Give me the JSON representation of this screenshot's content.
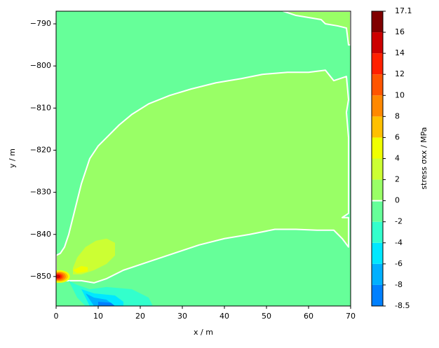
{
  "chart_data": {
    "type": "contour",
    "xlabel": "x / m",
    "ylabel": "y / m",
    "colorbar_label": "stress σxx / MPa",
    "xlim": [
      0,
      70
    ],
    "ylim": [
      -857,
      -787
    ],
    "xticks": [
      0,
      10,
      20,
      30,
      40,
      50,
      60,
      70
    ],
    "yticks": [
      {
        "value": -790,
        "label": "−790"
      },
      {
        "value": -800,
        "label": "−800"
      },
      {
        "value": -810,
        "label": "−810"
      },
      {
        "value": -820,
        "label": "−820"
      },
      {
        "value": -830,
        "label": "−830"
      },
      {
        "value": -840,
        "label": "−840"
      },
      {
        "value": -850,
        "label": "−850"
      }
    ],
    "levels": [
      -8.5,
      -8,
      -6,
      -4,
      -2,
      0,
      2,
      4,
      6,
      8,
      10,
      12,
      14,
      16,
      17.1
    ],
    "colors": [
      "#0080ff",
      "#00b0ff",
      "#00e8ff",
      "#33ffcc",
      "#66ff99",
      "#99ff66",
      "#ccff33",
      "#f0ff00",
      "#ffc000",
      "#ff8800",
      "#ff5500",
      "#ff2000",
      "#cc0000",
      "#800000"
    ],
    "contour_line_level": 0,
    "regions": [
      {
        "level": -2,
        "x": [
          0,
          70,
          70,
          0
        ],
        "y": [
          -787,
          -787,
          -857,
          -857
        ]
      },
      {
        "level": 0,
        "x": [
          54,
          57,
          60,
          63,
          64,
          67,
          69,
          69.5,
          70,
          70
        ],
        "y": [
          -787,
          -788,
          -788.5,
          -789,
          -790,
          -790.5,
          -791,
          -795,
          -795,
          -787
        ]
      },
      {
        "level": 0,
        "x": [
          0,
          1,
          2,
          3,
          4,
          5,
          6,
          7,
          8,
          10,
          12,
          15,
          18,
          22,
          27,
          32,
          38,
          44,
          49,
          55,
          60,
          64,
          66,
          69,
          69.5,
          69,
          69.5,
          69.5,
          68,
          69.5,
          69.5,
          68,
          66,
          62,
          57,
          52,
          46,
          40,
          34,
          28,
          22,
          16,
          12,
          9,
          6,
          3,
          0
        ],
        "y": [
          -845,
          -844.5,
          -843,
          -840,
          -836,
          -832,
          -828,
          -825,
          -822,
          -819,
          -817,
          -814,
          -811.5,
          -809,
          -807,
          -805.5,
          -804,
          -803,
          -802,
          -801.5,
          -801.5,
          -801,
          -803.5,
          -802.5,
          -808,
          -811,
          -817,
          -835,
          -836,
          -836,
          -843,
          -841,
          -839,
          -839,
          -838.8,
          -838.8,
          -840,
          -841,
          -842.5,
          -844.5,
          -846.5,
          -848.5,
          -850.5,
          -851.5,
          -851,
          -851,
          -851
        ]
      },
      {
        "level": 2,
        "x": [
          4,
          5,
          7,
          9.5,
          12,
          14,
          14,
          12,
          9,
          6,
          4
        ],
        "y": [
          -848,
          -845.5,
          -843,
          -841.5,
          -841,
          -842,
          -845,
          -847,
          -848.5,
          -849.5,
          -849.5
        ]
      },
      {
        "level": 4,
        "x": [
          4,
          6,
          7.5,
          7.5,
          5
        ],
        "y": [
          -848.5,
          -847.5,
          -847.8,
          -848.8,
          -849.2
        ]
      },
      {
        "level": 4,
        "cx": 0.8,
        "cy": -850,
        "rx": 2.5,
        "ry": 1.5
      },
      {
        "level": 6,
        "cx": 0.8,
        "cy": -850,
        "rx": 2,
        "ry": 1.2
      },
      {
        "level": 8,
        "cx": 0.8,
        "cy": -850,
        "rx": 1.5,
        "ry": 1
      },
      {
        "level": 10,
        "cx": 0.6,
        "cy": -850,
        "rx": 1.2,
        "ry": 0.8
      },
      {
        "level": 12,
        "cx": 0.5,
        "cy": -850,
        "rx": 0.9,
        "ry": 0.6
      },
      {
        "level": 14,
        "cx": 0.4,
        "cy": -850,
        "rx": 0.6,
        "ry": 0.4
      },
      {
        "level": -4,
        "x": [
          3,
          5,
          8,
          12,
          18,
          22,
          23,
          7,
          5
        ],
        "y": [
          -851,
          -852,
          -853,
          -852.5,
          -853,
          -855,
          -857,
          -857,
          -855
        ]
      },
      {
        "level": -6,
        "x": [
          6,
          9,
          14,
          16,
          16,
          8
        ],
        "y": [
          -853,
          -854,
          -854.5,
          -856,
          -857,
          -857
        ]
      },
      {
        "level": -8,
        "x": [
          7,
          9,
          12,
          14,
          9
        ],
        "y": [
          -854,
          -855,
          -855.5,
          -857,
          -857
        ]
      },
      {
        "level": -8.5,
        "x": [
          10,
          13,
          14,
          10
        ],
        "y": [
          -856,
          -856.2,
          -857,
          -857
        ]
      }
    ]
  }
}
